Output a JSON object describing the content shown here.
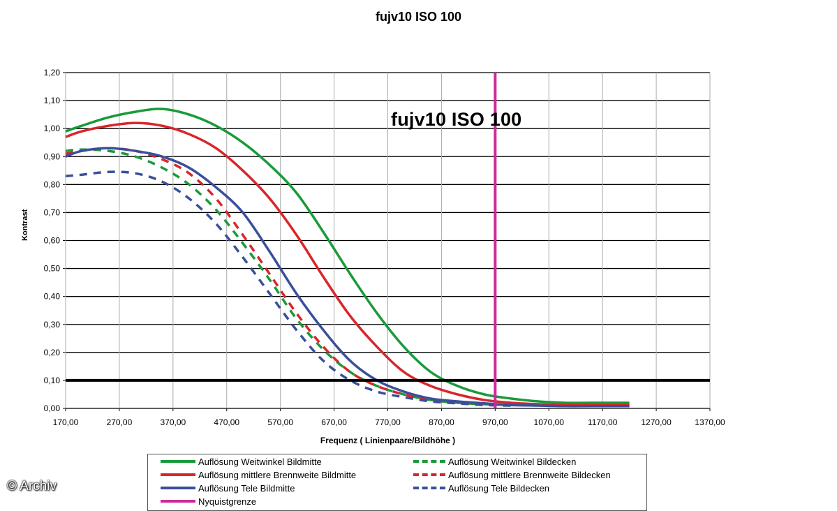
{
  "header": {
    "title": "fujv10   ISO 100"
  },
  "watermark": "© Archiv",
  "chart_data": {
    "type": "line",
    "title": "fujv10   ISO 100",
    "inner_title": "fujv10   ISO 100",
    "xlabel": "Frequenz ( Linienpaare/Bildhöhe )",
    "ylabel": "Kontrast",
    "xlim": [
      170,
      1370
    ],
    "ylim": [
      0,
      1.2
    ],
    "x_ticks": [
      "170,00",
      "270,00",
      "370,00",
      "470,00",
      "570,00",
      "670,00",
      "770,00",
      "870,00",
      "970,00",
      "1070,00",
      "1170,00",
      "1270,00",
      "1370,00"
    ],
    "y_ticks": [
      "0,00",
      "0,10",
      "0,20",
      "0,30",
      "0,40",
      "0,50",
      "0,60",
      "0,70",
      "0,80",
      "0,90",
      "1,00",
      "1,10",
      "1,20"
    ],
    "grid": true,
    "legend_position": "bottom",
    "reference_line": {
      "y": 0.1,
      "color": "#000000"
    },
    "nyquist": {
      "x": 970,
      "color": "#cc2a9a",
      "name": "Nyquistgrenze"
    },
    "series": [
      {
        "name": "Auflösung Weitwinkel Bildmitte",
        "color": "#1a9a3a",
        "dash": false,
        "x": [
          170,
          200,
          250,
          300,
          350,
          400,
          450,
          500,
          550,
          600,
          650,
          700,
          750,
          800,
          850,
          900,
          950,
          1000,
          1050,
          1100,
          1150,
          1220
        ],
        "y": [
          0.99,
          1.01,
          1.04,
          1.06,
          1.07,
          1.05,
          1.01,
          0.95,
          0.87,
          0.77,
          0.63,
          0.48,
          0.34,
          0.22,
          0.13,
          0.08,
          0.05,
          0.035,
          0.025,
          0.02,
          0.02,
          0.02
        ]
      },
      {
        "name": "Auflösung mittlere Brennweite Bildmitte",
        "color": "#d8262a",
        "dash": false,
        "x": [
          170,
          200,
          250,
          300,
          350,
          400,
          450,
          500,
          550,
          600,
          650,
          700,
          750,
          800,
          850,
          900,
          950,
          1000,
          1050,
          1100,
          1150,
          1220
        ],
        "y": [
          0.97,
          0.99,
          1.01,
          1.02,
          1.01,
          0.98,
          0.93,
          0.85,
          0.75,
          0.62,
          0.47,
          0.33,
          0.22,
          0.13,
          0.08,
          0.05,
          0.03,
          0.02,
          0.015,
          0.012,
          0.012,
          0.012
        ]
      },
      {
        "name": "Auflösung Tele Bildmitte",
        "color": "#3a4f9a",
        "dash": false,
        "x": [
          170,
          200,
          250,
          300,
          350,
          400,
          450,
          500,
          550,
          600,
          650,
          700,
          750,
          800,
          850,
          900,
          950,
          1000,
          1050,
          1100,
          1150,
          1220
        ],
        "y": [
          0.9,
          0.92,
          0.93,
          0.92,
          0.9,
          0.86,
          0.79,
          0.7,
          0.56,
          0.41,
          0.28,
          0.17,
          0.1,
          0.06,
          0.035,
          0.025,
          0.018,
          0.012,
          0.01,
          0.008,
          0.008,
          0.008
        ]
      },
      {
        "name": "Auflösung Weitwinkel Bildecken",
        "color": "#1a9a3a",
        "dash": true,
        "x": [
          170,
          200,
          250,
          300,
          350,
          400,
          450,
          500,
          550,
          600,
          650,
          700,
          750,
          800,
          850,
          900,
          950,
          1000
        ],
        "y": [
          0.92,
          0.925,
          0.92,
          0.9,
          0.86,
          0.8,
          0.71,
          0.59,
          0.46,
          0.32,
          0.21,
          0.13,
          0.08,
          0.05,
          0.03,
          0.02,
          0.015,
          0.012
        ]
      },
      {
        "name": "Auflösung mittlere Brennweite Bildecken",
        "color": "#d8262a",
        "dash": true,
        "x": [
          170,
          200,
          250,
          300,
          350,
          400,
          450,
          500,
          550,
          600,
          650,
          700,
          750,
          800,
          850,
          900,
          950,
          1000
        ],
        "y": [
          0.91,
          0.92,
          0.93,
          0.92,
          0.89,
          0.84,
          0.75,
          0.62,
          0.48,
          0.34,
          0.22,
          0.13,
          0.08,
          0.05,
          0.03,
          0.02,
          0.015,
          0.012
        ]
      },
      {
        "name": "Auflösung Tele Bildecken",
        "color": "#3a4f9a",
        "dash": true,
        "x": [
          170,
          200,
          250,
          300,
          350,
          400,
          450,
          500,
          550,
          600,
          650,
          700,
          750,
          800,
          850,
          900,
          950,
          1000
        ],
        "y": [
          0.83,
          0.835,
          0.845,
          0.84,
          0.81,
          0.75,
          0.66,
          0.54,
          0.41,
          0.28,
          0.17,
          0.1,
          0.06,
          0.04,
          0.025,
          0.018,
          0.012,
          0.01
        ]
      }
    ]
  }
}
